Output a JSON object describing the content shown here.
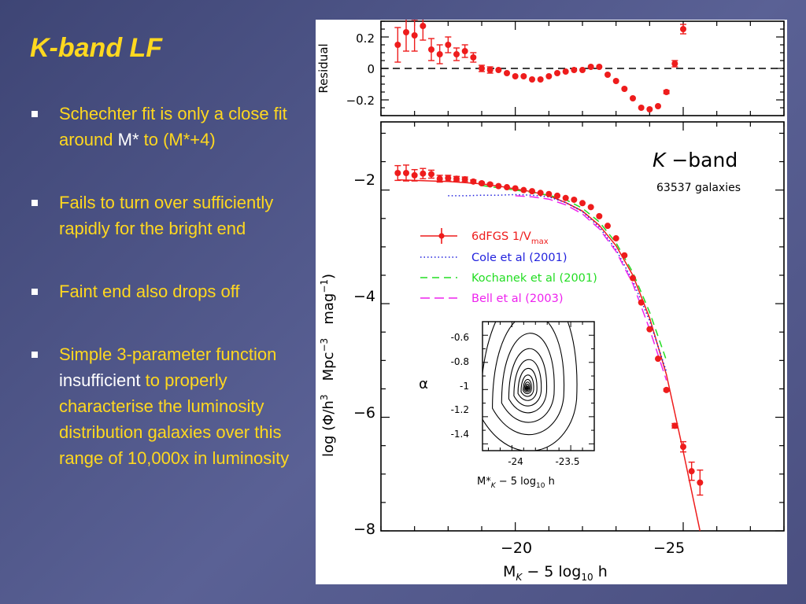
{
  "slide": {
    "title": "K-band LF",
    "bullets": [
      {
        "t1": "Schechter fit is only a close fit around ",
        "t2": "M*",
        "t3": " to (M*+4)"
      },
      {
        "text": "Fails to turn over sufficiently rapidly for the bright end"
      },
      {
        "text": "Faint end also drops off"
      },
      {
        "t1": "Simple 3-parameter function ",
        "t2": "insufficient",
        "t3": " to properly characterise the luminosity distribution galaxies over this range of 10,000x in luminosity"
      }
    ]
  },
  "colors": {
    "title": "#ffd81f",
    "text": "#ffd81f",
    "highlight": "#ffffff",
    "data": "#ee1c1c",
    "cole": "#2222dd",
    "kochanek": "#22dd22",
    "bell": "#ee22ee"
  },
  "chart_data": [
    {
      "type": "scatter",
      "panel": "residual",
      "ylabel": "Residual",
      "xlim": [
        -16,
        -28
      ],
      "ylim": [
        -0.3,
        0.3
      ],
      "yticks": [
        "0.2",
        "0",
        "−0.2"
      ],
      "reference_line": 0,
      "points": [
        {
          "x": -16.5,
          "y": 0.15,
          "e": 0.11
        },
        {
          "x": -16.75,
          "y": 0.23,
          "e": 0.12
        },
        {
          "x": -17.0,
          "y": 0.21,
          "e": 0.1
        },
        {
          "x": -17.25,
          "y": 0.27,
          "e": 0.09
        },
        {
          "x": -17.5,
          "y": 0.12,
          "e": 0.07
        },
        {
          "x": -17.75,
          "y": 0.09,
          "e": 0.06
        },
        {
          "x": -18.0,
          "y": 0.15,
          "e": 0.05
        },
        {
          "x": -18.25,
          "y": 0.09,
          "e": 0.04
        },
        {
          "x": -18.5,
          "y": 0.11,
          "e": 0.04
        },
        {
          "x": -18.75,
          "y": 0.07,
          "e": 0.03
        },
        {
          "x": -19.0,
          "y": 0.0,
          "e": 0.02
        },
        {
          "x": -19.25,
          "y": -0.01,
          "e": 0.02
        },
        {
          "x": -19.5,
          "y": -0.01,
          "e": 0.0
        },
        {
          "x": -19.75,
          "y": -0.03,
          "e": 0.0
        },
        {
          "x": -20.0,
          "y": -0.05,
          "e": 0.0
        },
        {
          "x": -20.25,
          "y": -0.05,
          "e": 0.0
        },
        {
          "x": -20.5,
          "y": -0.07,
          "e": 0.0
        },
        {
          "x": -20.75,
          "y": -0.07,
          "e": 0.0
        },
        {
          "x": -21.0,
          "y": -0.05,
          "e": 0.0
        },
        {
          "x": -21.25,
          "y": -0.03,
          "e": 0.0
        },
        {
          "x": -21.5,
          "y": -0.02,
          "e": 0.0
        },
        {
          "x": -21.75,
          "y": -0.01,
          "e": 0.0
        },
        {
          "x": -22.0,
          "y": -0.01,
          "e": 0.0
        },
        {
          "x": -22.25,
          "y": 0.01,
          "e": 0.0
        },
        {
          "x": -22.5,
          "y": 0.01,
          "e": 0.0
        },
        {
          "x": -22.75,
          "y": -0.04,
          "e": 0.0
        },
        {
          "x": -23.0,
          "y": -0.08,
          "e": 0.0
        },
        {
          "x": -23.25,
          "y": -0.13,
          "e": 0.0
        },
        {
          "x": -23.5,
          "y": -0.19,
          "e": 0.0
        },
        {
          "x": -23.75,
          "y": -0.25,
          "e": 0.0
        },
        {
          "x": -24.0,
          "y": -0.26,
          "e": 0.0
        },
        {
          "x": -24.25,
          "y": -0.24,
          "e": 0.0
        },
        {
          "x": -24.5,
          "y": -0.15,
          "e": 0.01
        },
        {
          "x": -24.75,
          "y": 0.03,
          "e": 0.02
        },
        {
          "x": -25.0,
          "y": 0.25,
          "e": 0.03
        }
      ]
    },
    {
      "type": "line",
      "panel": "main",
      "xlabel_parts": [
        "M",
        "K",
        " − 5 log",
        "10",
        " h"
      ],
      "ylabel_parts": [
        "log (Φ/h",
        "3",
        "   Mpc",
        "−3",
        "   mag",
        "−1",
        ")"
      ],
      "xlim": [
        -16,
        -28
      ],
      "ylim": [
        -8,
        -0.8
      ],
      "xticks": [
        "−20",
        "−25"
      ],
      "yticks": [
        "−2",
        "−4",
        "−6",
        "−8"
      ],
      "annotation": {
        "band_italic": "K",
        "band_rest": " −band",
        "count": "63537 galaxies"
      },
      "legend_position": "center-right",
      "legend": [
        {
          "name_main": "6dFGS 1/V",
          "name_sub": "max",
          "style": "line-with-points"
        },
        {
          "name": "Cole et al (2001)",
          "style": "dotted"
        },
        {
          "name": "Kochanek et al (2001)",
          "style": "dashed"
        },
        {
          "name": "Bell et al (2003)",
          "style": "long-dashed"
        }
      ],
      "points": [
        {
          "x": -16.5,
          "y": -1.7,
          "e": 0.13
        },
        {
          "x": -16.75,
          "y": -1.7,
          "e": 0.14
        },
        {
          "x": -17.0,
          "y": -1.74,
          "e": 0.1
        },
        {
          "x": -17.25,
          "y": -1.71,
          "e": 0.09
        },
        {
          "x": -17.5,
          "y": -1.72,
          "e": 0.07
        },
        {
          "x": -17.75,
          "y": -1.8,
          "e": 0.06
        },
        {
          "x": -18.0,
          "y": -1.79,
          "e": 0.05
        },
        {
          "x": -18.25,
          "y": -1.8,
          "e": 0.04
        },
        {
          "x": -18.5,
          "y": -1.81,
          "e": 0.04
        },
        {
          "x": -18.75,
          "y": -1.85,
          "e": 0.03
        },
        {
          "x": -19.0,
          "y": -1.88,
          "e": 0.02
        },
        {
          "x": -19.25,
          "y": -1.9,
          "e": 0.02
        },
        {
          "x": -19.5,
          "y": -1.93,
          "e": 0.0
        },
        {
          "x": -19.75,
          "y": -1.95,
          "e": 0.0
        },
        {
          "x": -20.0,
          "y": -1.97,
          "e": 0.0
        },
        {
          "x": -20.25,
          "y": -2.0,
          "e": 0.0
        },
        {
          "x": -20.5,
          "y": -2.02,
          "e": 0.0
        },
        {
          "x": -20.75,
          "y": -2.05,
          "e": 0.0
        },
        {
          "x": -21.0,
          "y": -2.07,
          "e": 0.0
        },
        {
          "x": -21.25,
          "y": -2.1,
          "e": 0.0
        },
        {
          "x": -21.5,
          "y": -2.14,
          "e": 0.0
        },
        {
          "x": -21.75,
          "y": -2.17,
          "e": 0.0
        },
        {
          "x": -22.0,
          "y": -2.23,
          "e": 0.0
        },
        {
          "x": -22.25,
          "y": -2.3,
          "e": 0.0
        },
        {
          "x": -22.5,
          "y": -2.46,
          "e": 0.0
        },
        {
          "x": -22.75,
          "y": -2.63,
          "e": 0.0
        },
        {
          "x": -23.0,
          "y": -2.85,
          "e": 0.0
        },
        {
          "x": -23.25,
          "y": -3.15,
          "e": 0.0
        },
        {
          "x": -23.5,
          "y": -3.55,
          "e": 0.0
        },
        {
          "x": -23.75,
          "y": -3.98,
          "e": 0.0
        },
        {
          "x": -24.0,
          "y": -4.45,
          "e": 0.0
        },
        {
          "x": -24.25,
          "y": -4.97,
          "e": 0.0
        },
        {
          "x": -24.5,
          "y": -5.52,
          "e": 0.02
        },
        {
          "x": -24.75,
          "y": -6.15,
          "e": 0.04
        },
        {
          "x": -25.0,
          "y": -6.52,
          "e": 0.09
        },
        {
          "x": -25.25,
          "y": -6.95,
          "e": 0.16
        },
        {
          "x": -25.5,
          "y": -7.15,
          "e": 0.22
        }
      ],
      "curves": [
        {
          "name": "6dFGS 1/Vmax",
          "style": "solid",
          "x": [
            -16.5,
            -17,
            -17.5,
            -18,
            -18.5,
            -19,
            -19.5,
            -20,
            -20.5,
            -21,
            -21.5,
            -22,
            -22.5,
            -23,
            -23.5,
            -24,
            -24.5,
            -25,
            -25.5
          ],
          "y": [
            -1.82,
            -1.83,
            -1.84,
            -1.85,
            -1.87,
            -1.89,
            -1.93,
            -1.98,
            -2.03,
            -2.1,
            -2.22,
            -2.37,
            -2.62,
            -2.98,
            -3.5,
            -4.25,
            -5.25,
            -6.6,
            -8.0
          ]
        },
        {
          "name": "Cole et al (2001)",
          "style": "dotted",
          "x": [
            -18,
            -18.5,
            -19,
            -19.5,
            -20,
            -20.5,
            -21,
            -21.5,
            -22,
            -22.5,
            -23,
            -23.5,
            -24,
            -24.5
          ],
          "y": [
            -2.1,
            -2.1,
            -2.09,
            -2.09,
            -2.08,
            -2.09,
            -2.12,
            -2.22,
            -2.38,
            -2.65,
            -3.05,
            -3.6,
            -4.3,
            -5.2
          ]
        },
        {
          "name": "Kochanek et al (2001)",
          "style": "dashed",
          "x": [
            -19,
            -19.5,
            -20,
            -20.5,
            -21,
            -21.5,
            -22,
            -22.5,
            -23,
            -23.5,
            -24,
            -24.5
          ],
          "y": [
            -1.92,
            -1.96,
            -2.0,
            -2.04,
            -2.09,
            -2.17,
            -2.32,
            -2.56,
            -2.93,
            -3.45,
            -4.15,
            -5.0
          ]
        },
        {
          "name": "Bell et al (2003)",
          "style": "long-dashed",
          "x": [
            -20,
            -20.5,
            -21,
            -21.5,
            -22,
            -22.5,
            -23,
            -23.5,
            -24,
            -24.5
          ],
          "y": [
            -2.1,
            -2.12,
            -2.16,
            -2.26,
            -2.42,
            -2.68,
            -3.08,
            -3.65,
            -4.45,
            -5.35
          ]
        }
      ]
    },
    {
      "type": "contour",
      "panel": "inset",
      "xlabel_parts": [
        "M*",
        "K",
        " − 5 log",
        "10",
        " h"
      ],
      "ylabel": "α",
      "xlim": [
        -24.25,
        -23.3
      ],
      "ylim": [
        -1.45,
        -0.5
      ],
      "xticks": [
        "-24",
        "-23.5"
      ],
      "yticks": [
        "-0.6",
        "-0.8",
        "-1",
        "-1.2",
        "-1.4"
      ],
      "center": {
        "x": -23.87,
        "y": -0.99
      }
    }
  ]
}
